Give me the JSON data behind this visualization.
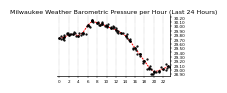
{
  "title": "Milwaukee Weather Barometric Pressure per Hour (Last 24 Hours)",
  "background_color": "#ffffff",
  "plot_background": "#ffffff",
  "grid_color": "#888888",
  "line_color": "#ff0000",
  "dot_color": "#000000",
  "hours": [
    0,
    1,
    2,
    3,
    4,
    5,
    6,
    7,
    8,
    9,
    10,
    11,
    12,
    13,
    14,
    15,
    16,
    17,
    18,
    19,
    20,
    21,
    22,
    23
  ],
  "pressure": [
    29.72,
    29.75,
    29.8,
    29.82,
    29.78,
    29.85,
    30.02,
    30.12,
    30.08,
    30.05,
    30.0,
    29.95,
    29.92,
    29.85,
    29.78,
    29.65,
    29.5,
    29.35,
    29.2,
    29.05,
    28.95,
    28.98,
    29.02,
    29.08
  ],
  "ylim": [
    28.85,
    30.25
  ],
  "yticks": [
    28.9,
    29.0,
    29.1,
    29.2,
    29.3,
    29.4,
    29.5,
    29.6,
    29.7,
    29.8,
    29.9,
    30.0,
    30.1,
    30.2
  ],
  "xtick_positions": [
    0,
    2,
    4,
    6,
    8,
    10,
    12,
    14,
    16,
    18,
    20,
    22
  ],
  "title_fontsize": 4.5,
  "tick_fontsize": 3.0
}
